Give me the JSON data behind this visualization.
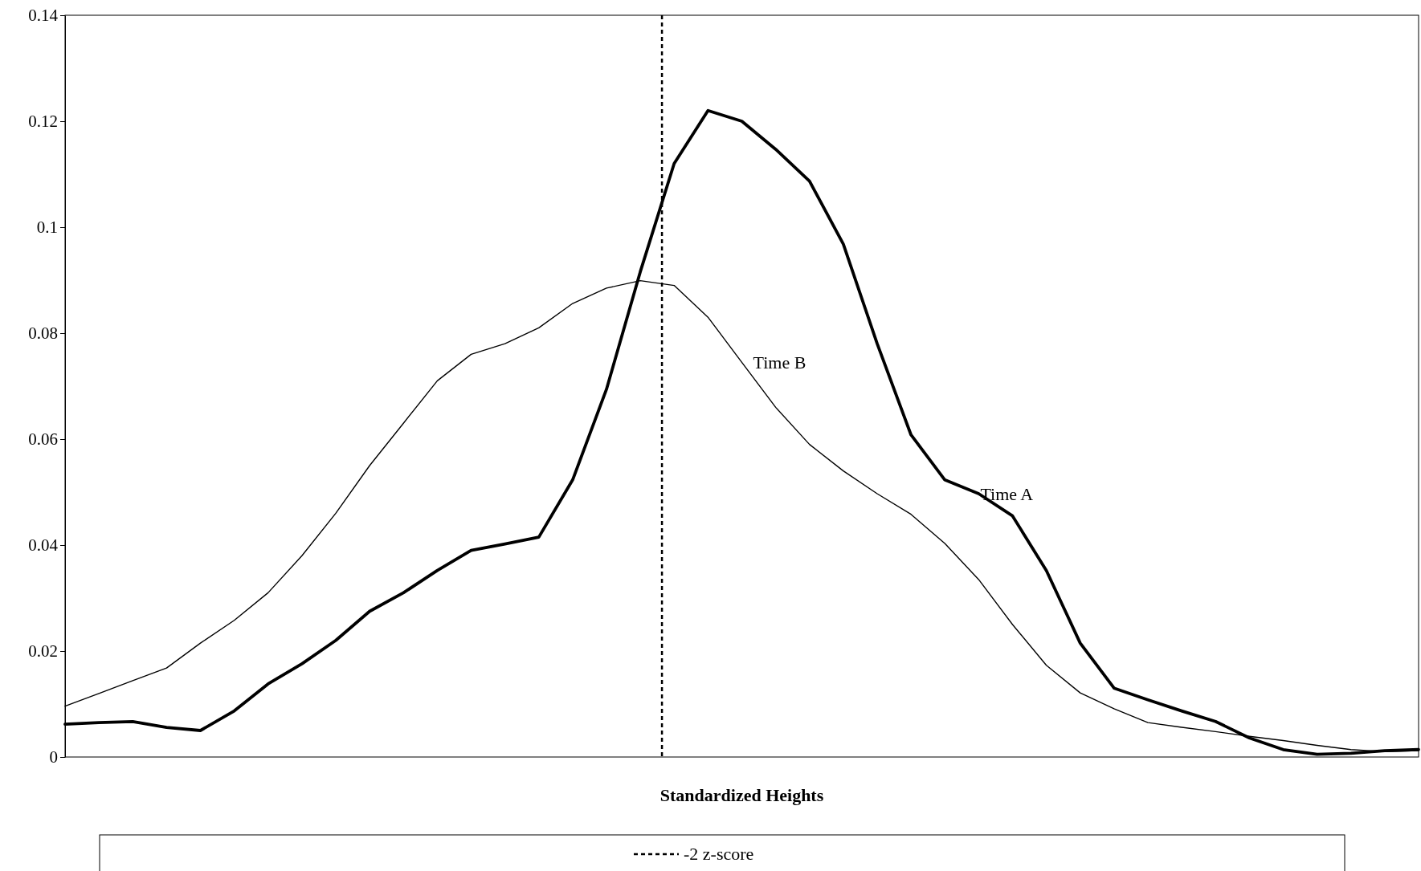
{
  "chart_data": {
    "type": "line",
    "xlabel": "Standardized Heights",
    "categories": [
      null,
      null,
      null,
      null,
      null,
      null,
      null,
      null,
      null,
      null,
      null,
      null,
      null,
      null,
      null,
      null,
      null,
      null,
      null,
      null,
      null,
      null,
      null,
      null,
      null,
      null,
      null,
      null,
      null,
      null,
      null,
      null,
      null,
      null,
      null,
      null,
      null,
      null,
      null,
      null,
      null
    ],
    "ylim": [
      0,
      0.14
    ],
    "yticks": [
      0,
      0.02,
      0.04,
      0.06,
      0.08,
      0.1,
      0.12,
      0.14
    ],
    "grid": false,
    "marker": "none",
    "line_style": "solid",
    "series": [
      {
        "name": "Time A",
        "color": "#000000",
        "values": [
          0.0062,
          0.0065,
          0.0067,
          0.0056,
          0.005,
          0.0087,
          0.0138,
          0.0176,
          0.022,
          0.0275,
          0.031,
          0.0352,
          0.039,
          0.0402,
          0.0415,
          0.0523,
          0.0694,
          0.0916,
          0.112,
          0.122,
          0.12,
          0.1147,
          0.1087,
          0.0968,
          0.078,
          0.0608,
          0.0523,
          0.0497,
          0.0455,
          0.0352,
          0.0215,
          0.013,
          0.0108,
          0.0087,
          0.0067,
          0.0036,
          0.0014,
          0.0005,
          0.0007,
          0.0012,
          0.0014
        ]
      },
      {
        "name": "Time B",
        "color": "#000000",
        "values": [
          0.0096,
          0.012,
          0.0144,
          0.0168,
          0.0215,
          0.0258,
          0.031,
          0.038,
          0.046,
          0.055,
          0.063,
          0.071,
          0.076,
          0.078,
          0.081,
          0.0856,
          0.0885,
          0.0899,
          0.089,
          0.083,
          0.0745,
          0.066,
          0.059,
          0.054,
          0.0497,
          0.0458,
          0.0403,
          0.0335,
          0.025,
          0.0173,
          0.0121,
          0.0091,
          0.0065,
          0.0056,
          0.0048,
          0.0039,
          0.0031,
          0.0022,
          0.0014,
          0.001,
          0.0012
        ]
      }
    ],
    "annotations": [
      "-2 z-score"
    ]
  }
}
